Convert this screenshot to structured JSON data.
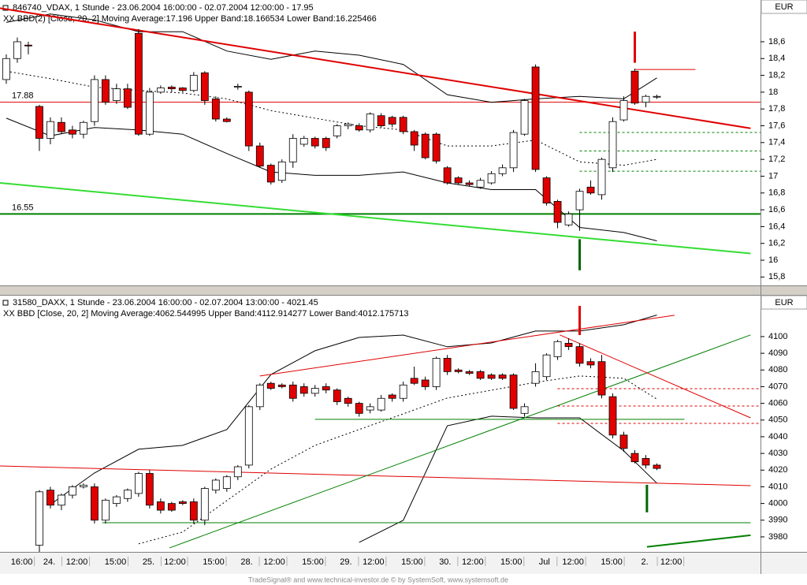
{
  "chart_data": [
    {
      "type": "candlestick",
      "title": "846740_VDAX, 1 Stunde - 23.06.2004 16:00:00 - 02.07.2004 12:00:00 - 17.95",
      "subtitle": "XX BBD(2) [Close, 20, 2] Moving Average:17.196 Upper Band:18.166534 Lower Band:16.225466",
      "unit": "EUR",
      "up_color": "#ffffff",
      "down_color": "#e00000",
      "xlim": [
        -0.57,
        68.4
      ],
      "ylim": [
        15.7,
        19.05
      ],
      "yticks": [
        {
          "value": 15.8,
          "label": "15,8"
        },
        {
          "value": 16,
          "label": "16"
        },
        {
          "value": 16.2,
          "label": "16,2"
        },
        {
          "value": 16.4,
          "label": "16,4"
        },
        {
          "value": 16.6,
          "label": "16,6"
        },
        {
          "value": 16.8,
          "label": "16,8"
        },
        {
          "value": 17,
          "label": "17"
        },
        {
          "value": 17.2,
          "label": "17,2"
        },
        {
          "value": 17.4,
          "label": "17,4"
        },
        {
          "value": 17.6,
          "label": "17,6"
        },
        {
          "value": 17.8,
          "label": "17,8"
        },
        {
          "value": 18,
          "label": "18"
        },
        {
          "value": 18.2,
          "label": "18,2"
        },
        {
          "value": 18.4,
          "label": "18,4"
        },
        {
          "value": 18.6,
          "label": "18,6"
        }
      ],
      "open": [
        18.15,
        18.4,
        18.56,
        17.83,
        17.45,
        17.64,
        17.55,
        17.5,
        17.65,
        18.15,
        17.9,
        18.04,
        18.7,
        17.5,
        18.0,
        18.06,
        18.05,
        18.02,
        18.23,
        17.92,
        17.68,
        18.06,
        18.0,
        17.36,
        17.13,
        16.95,
        17.17,
        17.38,
        17.45,
        17.45,
        17.48,
        17.6,
        17.6,
        17.55,
        17.72,
        17.7,
        17.7,
        17.53,
        17.5,
        17.5,
        17.1,
        16.98,
        16.92,
        16.87,
        16.92,
        17.03,
        17.1,
        17.5,
        18.3,
        16.98,
        16.7,
        16.42,
        16.6,
        16.87,
        16.78,
        17.1,
        17.67,
        18.25,
        17.88,
        17.95
      ],
      "high": [
        18.45,
        18.65,
        18.6,
        17.85,
        17.7,
        17.7,
        17.6,
        17.66,
        18.2,
        18.2,
        18.1,
        18.1,
        18.75,
        18.05,
        18.08,
        18.08,
        18.06,
        18.24,
        18.25,
        17.95,
        17.7,
        18.1,
        18.02,
        17.4,
        17.15,
        17.2,
        17.5,
        17.48,
        17.47,
        17.47,
        17.62,
        17.64,
        17.63,
        17.76,
        17.75,
        17.72,
        17.72,
        17.55,
        17.52,
        17.52,
        17.12,
        17.0,
        16.95,
        16.98,
        17.06,
        17.14,
        17.55,
        17.92,
        18.33,
        17.0,
        16.72,
        16.58,
        16.85,
        16.95,
        17.22,
        17.7,
        17.95,
        18.28,
        17.97,
        17.97
      ],
      "low": [
        18.1,
        18.35,
        18.45,
        17.3,
        17.38,
        17.5,
        17.45,
        17.45,
        17.6,
        17.85,
        17.86,
        17.8,
        17.48,
        17.48,
        17.98,
        18.0,
        18.0,
        18.0,
        17.85,
        17.65,
        17.64,
        18.03,
        17.3,
        17.1,
        16.9,
        16.92,
        17.1,
        17.35,
        17.33,
        17.3,
        17.45,
        17.56,
        17.53,
        17.52,
        17.58,
        17.58,
        17.5,
        17.3,
        17.2,
        17.15,
        16.9,
        16.9,
        16.88,
        16.85,
        16.9,
        17.0,
        17.05,
        17.48,
        17.05,
        16.65,
        16.38,
        16.4,
        16.35,
        16.78,
        16.72,
        17.05,
        17.65,
        17.85,
        17.82,
        17.92
      ],
      "close": [
        18.4,
        18.6,
        18.55,
        17.45,
        17.65,
        17.53,
        17.5,
        17.64,
        18.15,
        17.88,
        18.04,
        17.82,
        17.5,
        18.0,
        18.05,
        18.04,
        18.02,
        18.2,
        17.9,
        17.68,
        17.65,
        18.07,
        17.36,
        17.12,
        16.93,
        17.17,
        17.45,
        17.45,
        17.36,
        17.34,
        17.6,
        17.62,
        17.55,
        17.74,
        17.6,
        17.62,
        17.53,
        17.37,
        17.22,
        17.18,
        16.92,
        16.92,
        16.9,
        16.95,
        17.03,
        17.1,
        17.52,
        17.9,
        17.08,
        16.68,
        16.45,
        16.55,
        16.82,
        16.8,
        17.2,
        17.65,
        17.9,
        17.87,
        17.95,
        17.95
      ],
      "bands": {
        "color": "#000000",
        "x": [
          0,
          4,
          8,
          12,
          16,
          20,
          24,
          28,
          32,
          36,
          40,
          44,
          48,
          52,
          56,
          59
        ],
        "upper": [
          18.83,
          18.93,
          18.86,
          18.72,
          18.72,
          18.49,
          18.39,
          18.49,
          18.44,
          18.33,
          17.97,
          17.88,
          17.92,
          17.95,
          17.92,
          18.17
        ],
        "middle": [
          18.25,
          18.16,
          18.06,
          18.02,
          17.99,
          17.92,
          17.78,
          17.69,
          17.6,
          17.55,
          17.36,
          17.36,
          17.43,
          17.17,
          17.13,
          17.2
        ],
        "lower": [
          17.69,
          17.48,
          17.58,
          17.55,
          17.5,
          17.27,
          17.05,
          17.01,
          17.01,
          17.05,
          16.92,
          16.84,
          16.84,
          16.39,
          16.33,
          16.23
        ]
      },
      "levels": [
        {
          "value": 17.88,
          "color": "#e00000"
        },
        {
          "value": 16.55,
          "color": "#008000"
        }
      ],
      "lines": [
        {
          "from": [
            -0.57,
            19.0
          ],
          "to": [
            67.5,
            17.57
          ],
          "color": "#e00000",
          "width": 2
        },
        {
          "from": [
            -0.57,
            16.92
          ],
          "to": [
            67.5,
            16.08
          ],
          "color": "#33dd33",
          "width": 2
        },
        {
          "from": [
            52,
            17.52
          ],
          "to": [
            68.4,
            17.52
          ],
          "color": "#008000",
          "width": 1,
          "dash": true
        },
        {
          "from": [
            52,
            17.3
          ],
          "to": [
            68.4,
            17.3
          ],
          "color": "#008000",
          "width": 1,
          "dash": true
        },
        {
          "from": [
            52,
            17.06
          ],
          "to": [
            68.4,
            17.06
          ],
          "color": "#008000",
          "width": 1,
          "dash": true
        },
        {
          "from": [
            57,
            18.27
          ],
          "to": [
            62.5,
            18.27
          ],
          "color": "#e00000",
          "width": 1
        },
        {
          "from": [
            57,
            18.72
          ],
          "to": [
            57,
            18.35
          ],
          "color": "#e00000",
          "width": 3
        },
        {
          "from": [
            52,
            16.25
          ],
          "to": [
            52,
            15.88
          ],
          "color": "#006400",
          "width": 3
        }
      ]
    },
    {
      "type": "candlestick",
      "title": "31580_DAXX, 1 Stunde - 23.06.2004 16:00:00 - 02.07.2004 13:00:00 - 4021.45",
      "subtitle": "XX BBD [Close, 20, 2] Moving Average:4062.544995 Upper Band:4112.914277 Lower Band:4012.175713",
      "unit": "EUR",
      "up_color": "#ffffff",
      "down_color": "#e00000",
      "xlim": [
        -0.57,
        68.4
      ],
      "ylim": [
        3971,
        4116.5
      ],
      "yticks": [
        3980,
        3990,
        4000,
        4010,
        4020,
        4030,
        4040,
        4050,
        4060,
        4070,
        4080,
        4090,
        4100
      ],
      "xticks": [
        {
          "value": 1.4,
          "label": "16:00"
        },
        {
          "value": 3.9,
          "label": "24."
        },
        {
          "value": 6.4,
          "label": "12:00"
        },
        {
          "value": 9.9,
          "label": "15:00"
        },
        {
          "value": 12.9,
          "label": "25."
        },
        {
          "value": 15.3,
          "label": "12:00"
        },
        {
          "value": 18.8,
          "label": "15:00"
        },
        {
          "value": 21.8,
          "label": "28."
        },
        {
          "value": 24.3,
          "label": "12:00"
        },
        {
          "value": 27.8,
          "label": "15:00"
        },
        {
          "value": 30.8,
          "label": "29."
        },
        {
          "value": 33.3,
          "label": "12:00"
        },
        {
          "value": 36.8,
          "label": "15:00"
        },
        {
          "value": 39.8,
          "label": "30."
        },
        {
          "value": 42.3,
          "label": "12:00"
        },
        {
          "value": 45.8,
          "label": "15:00"
        },
        {
          "value": 48.8,
          "label": "Jul"
        },
        {
          "value": 51.4,
          "label": "12:00"
        },
        {
          "value": 54.9,
          "label": "15:00"
        },
        {
          "value": 57.9,
          "label": "2."
        },
        {
          "value": 60.3,
          "label": "12:00"
        }
      ],
      "open": [
        null,
        null,
        null,
        3975,
        4008,
        3999,
        4005,
        4010,
        4010,
        3990,
        4000,
        4003,
        4006,
        4018,
        4001,
        4000,
        4001,
        4001,
        3990,
        4008,
        4009,
        4016,
        4023,
        4058,
        4072,
        4071,
        4071,
        4070,
        4066,
        4070,
        4068,
        4063,
        4060,
        4056,
        4056,
        4065,
        4063,
        4075,
        4074,
        4070,
        4087,
        4080,
        4079,
        4079,
        4077,
        4077,
        4077,
        4054,
        4072,
        4076,
        4088,
        4096,
        4094,
        4085,
        4085,
        4064,
        4041,
        4030,
        4027,
        4023
      ],
      "high": [
        null,
        null,
        null,
        4008,
        4010,
        4006,
        4011,
        4012,
        4012,
        4003,
        4005,
        4009,
        4019,
        4020,
        4003,
        4001,
        4002,
        4003,
        4010,
        4015,
        4017,
        4023,
        4059,
        4072,
        4073,
        4072,
        4073,
        4072,
        4071,
        4072,
        4069,
        4064,
        4061,
        4060,
        4065,
        4066,
        4073,
        4082,
        4076,
        4088,
        4089,
        4081,
        4080,
        4080,
        4078,
        4078,
        4078,
        4060,
        4084,
        4090,
        4098,
        4099,
        4096,
        4087,
        4089,
        4066,
        4043,
        4032,
        4029,
        4024
      ],
      "low": [
        null,
        null,
        null,
        3971,
        3997,
        3996,
        4003,
        4009,
        3988,
        3988,
        3998,
        4001,
        4004,
        3997,
        3994,
        3995,
        3999,
        3988,
        3987,
        4006,
        4007,
        4014,
        4021,
        4056,
        4068,
        4069,
        4061,
        4064,
        4064,
        4066,
        4059,
        4058,
        4052,
        4054,
        4055,
        4061,
        4061,
        4071,
        4068,
        4068,
        4077,
        4078,
        4077,
        4074,
        4074,
        4074,
        4056,
        4052,
        4070,
        4074,
        4086,
        4092,
        4082,
        4081,
        4063,
        4039,
        4031,
        4024,
        4021,
        4020
      ],
      "close": [
        null,
        null,
        null,
        4007,
        3999,
        4005,
        4010,
        4011,
        3990,
        4002,
        4004,
        4008,
        4018,
        3999,
        3996,
        3996,
        4000,
        3990,
        4009,
        4014,
        4016,
        4022,
        4058,
        4071,
        4069,
        4070,
        4063,
        4066,
        4069,
        4068,
        4061,
        4060,
        4054,
        4058,
        4063,
        4063,
        4071,
        4072,
        4070,
        4087,
        4079,
        4079,
        4078,
        4075,
        4075,
        4075,
        4057,
        4058,
        4079,
        4089,
        4097,
        4094,
        4084,
        4083,
        4065,
        4041,
        4033,
        4025,
        4023,
        4021
      ],
      "bands": {
        "color": "#000000",
        "x": [
          4,
          8,
          12,
          16,
          20,
          24,
          28,
          32,
          36,
          40,
          44,
          48,
          52,
          56,
          59
        ],
        "upper": [
          3999.4,
          4018.3,
          4032.5,
          4034.8,
          4044.3,
          4077.3,
          4091.5,
          4099.5,
          4100.9,
          4093.9,
          4096.2,
          4103.3,
          4103.3,
          4107.1,
          4112.9
        ],
        "middle": [
          null,
          null,
          3975.8,
          3982.9,
          4001.7,
          4020.6,
          4034.8,
          4044.3,
          4053.7,
          4063.2,
          4067.9,
          4072.6,
          4076.4,
          4075,
          4062.5
        ],
        "lower": [
          null,
          null,
          null,
          null,
          null,
          null,
          null,
          3976.7,
          3989.9,
          4046.6,
          4052.3,
          4051.3,
          4051.3,
          4031.5,
          4012.2
        ]
      },
      "lines": [
        {
          "from": [
            -0.57,
            4022.5
          ],
          "to": [
            67.5,
            4010.7
          ],
          "color": "#e00000",
          "width": 1
        },
        {
          "from": [
            23.0,
            4076.4
          ],
          "to": [
            60.6,
            4112.8
          ],
          "color": "#e00000",
          "width": 1
        },
        {
          "from": [
            14.8,
            3973.4
          ],
          "to": [
            67.5,
            4101
          ],
          "color": "#008000",
          "width": 1
        },
        {
          "from": [
            50.2,
            4101
          ],
          "to": [
            67.5,
            4051.3
          ],
          "color": "#e00000",
          "width": 1
        },
        {
          "from": [
            28.0,
            4050.4
          ],
          "to": [
            61.5,
            4050.4
          ],
          "color": "#008000",
          "width": 1
        },
        {
          "from": [
            8.7,
            3988.5
          ],
          "to": [
            67.5,
            3988.5
          ],
          "color": "#008000",
          "width": 1
        },
        {
          "from": [
            50,
            4068.8
          ],
          "to": [
            68.4,
            4068.8
          ],
          "color": "#e00000",
          "width": 1,
          "dash": true
        },
        {
          "from": [
            50,
            4058.4
          ],
          "to": [
            68.4,
            4058.4
          ],
          "color": "#e00000",
          "width": 1,
          "dash": true
        },
        {
          "from": [
            50,
            4048
          ],
          "to": [
            68.4,
            4048
          ],
          "color": "#e00000",
          "width": 1,
          "dash": true
        },
        {
          "from": [
            58.1,
            3974
          ],
          "to": [
            67.5,
            3981
          ],
          "color": "#008000",
          "width": 2
        },
        {
          "from": [
            52,
            4118.4
          ],
          "to": [
            52,
            4100.9
          ],
          "color": "#e00000",
          "width": 3
        },
        {
          "from": [
            58.1,
            4011.2
          ],
          "to": [
            58.1,
            3994.7
          ],
          "color": "#006400",
          "width": 3
        }
      ]
    }
  ],
  "footer": "TradeSignal® and www.technical-investor.de © by SystemSoft, www.systemsoft.de"
}
